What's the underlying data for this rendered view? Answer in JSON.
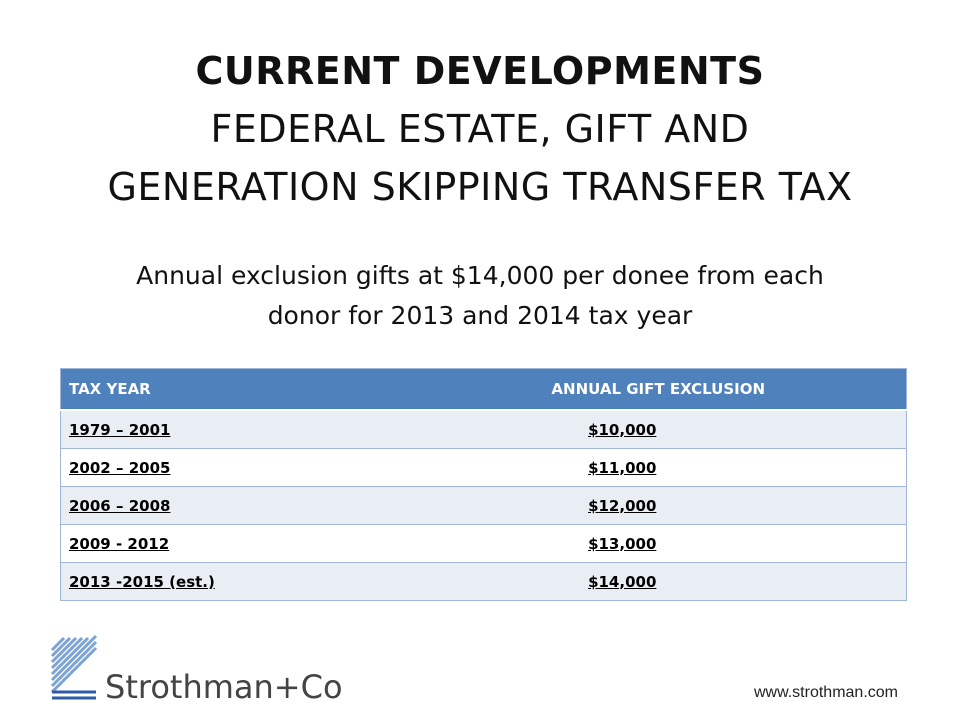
{
  "title": {
    "line1": "CURRENT DEVELOPMENTS",
    "line2": "FEDERAL ESTATE, GIFT AND",
    "line3": "GENERATION SKIPPING TRANSFER TAX"
  },
  "subtitle": {
    "line1": "Annual exclusion gifts at $14,000 per donee from each",
    "line2": "donor for 2013 and 2014 tax year"
  },
  "table": {
    "headers": [
      "TAX YEAR",
      "ANNUAL  GIFT EXCLUSION"
    ],
    "rows": [
      [
        "1979 – 2001",
        "$10,000"
      ],
      [
        "2002 – 2005",
        "$11,000"
      ],
      [
        "2006 – 2008",
        "$12,000"
      ],
      [
        "2009 - 2012",
        "$13,000"
      ],
      [
        "2013 -2015 (est.)",
        "$14,000"
      ]
    ]
  },
  "footer": {
    "brand": "Strothman+Co",
    "website": "www.strothman.com",
    "brand_color": "#2e5aa8"
  }
}
